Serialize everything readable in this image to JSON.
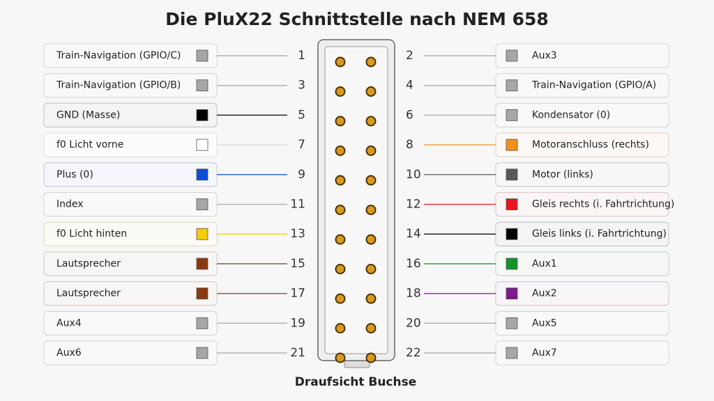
{
  "title": "Die PluX22 Schnittstelle nach NEM 658",
  "left": [
    {
      "pin": 1,
      "label": "Train-Navigation (GPIO/C)",
      "color": "#a6a6a6"
    },
    {
      "pin": 3,
      "label": "Train-Navigation (GPIO/B)",
      "color": "#a6a6a6"
    },
    {
      "pin": 5,
      "label": "GND (Masse)",
      "color": "#000000"
    },
    {
      "pin": 7,
      "label": "f0 Licht vorne",
      "color": "#ffffff"
    },
    {
      "pin": 9,
      "label": "Plus (0)",
      "color": "#0a4fd6"
    },
    {
      "pin": 11,
      "label": "Index",
      "color": "#a6a6a6"
    },
    {
      "pin": 13,
      "label": "f0 Licht hinten",
      "color": "#f5cc00"
    },
    {
      "pin": 15,
      "label": "Lautsprecher",
      "color": "#8b3a0f"
    },
    {
      "pin": 17,
      "label": "Lautsprecher",
      "color": "#8b3a0f"
    },
    {
      "pin": 19,
      "label": "Aux4",
      "color": "#a6a6a6"
    },
    {
      "pin": 21,
      "label": "Aux6",
      "color": "#a6a6a6"
    }
  ],
  "right": [
    {
      "pin": 2,
      "label": "Aux3",
      "color": "#a6a6a6"
    },
    {
      "pin": 4,
      "label": "Train-Navigation (GPIO/A)",
      "color": "#a6a6a6"
    },
    {
      "pin": 6,
      "label": "Kondensator (0)",
      "color": "#a6a6a6"
    },
    {
      "pin": 8,
      "label": "Motoranschluss (rechts)",
      "color": "#f39019"
    },
    {
      "pin": 10,
      "label": "Motor (links)",
      "color": "#595959"
    },
    {
      "pin": 12,
      "label": "Gleis rechts (i. Fahrtrichtung)",
      "color": "#e8141c"
    },
    {
      "pin": 14,
      "label": "Gleis links (i. Fahrtrichtung)",
      "color": "#000000"
    },
    {
      "pin": 16,
      "label": "Aux1",
      "color": "#14922a"
    },
    {
      "pin": 18,
      "label": "Aux2",
      "color": "#7a1a8c"
    },
    {
      "pin": 20,
      "label": "Aux5",
      "color": "#a6a6a6"
    },
    {
      "pin": 22,
      "label": "Aux7",
      "color": "#a6a6a6"
    }
  ],
  "caption": "Draufsicht Buchse"
}
